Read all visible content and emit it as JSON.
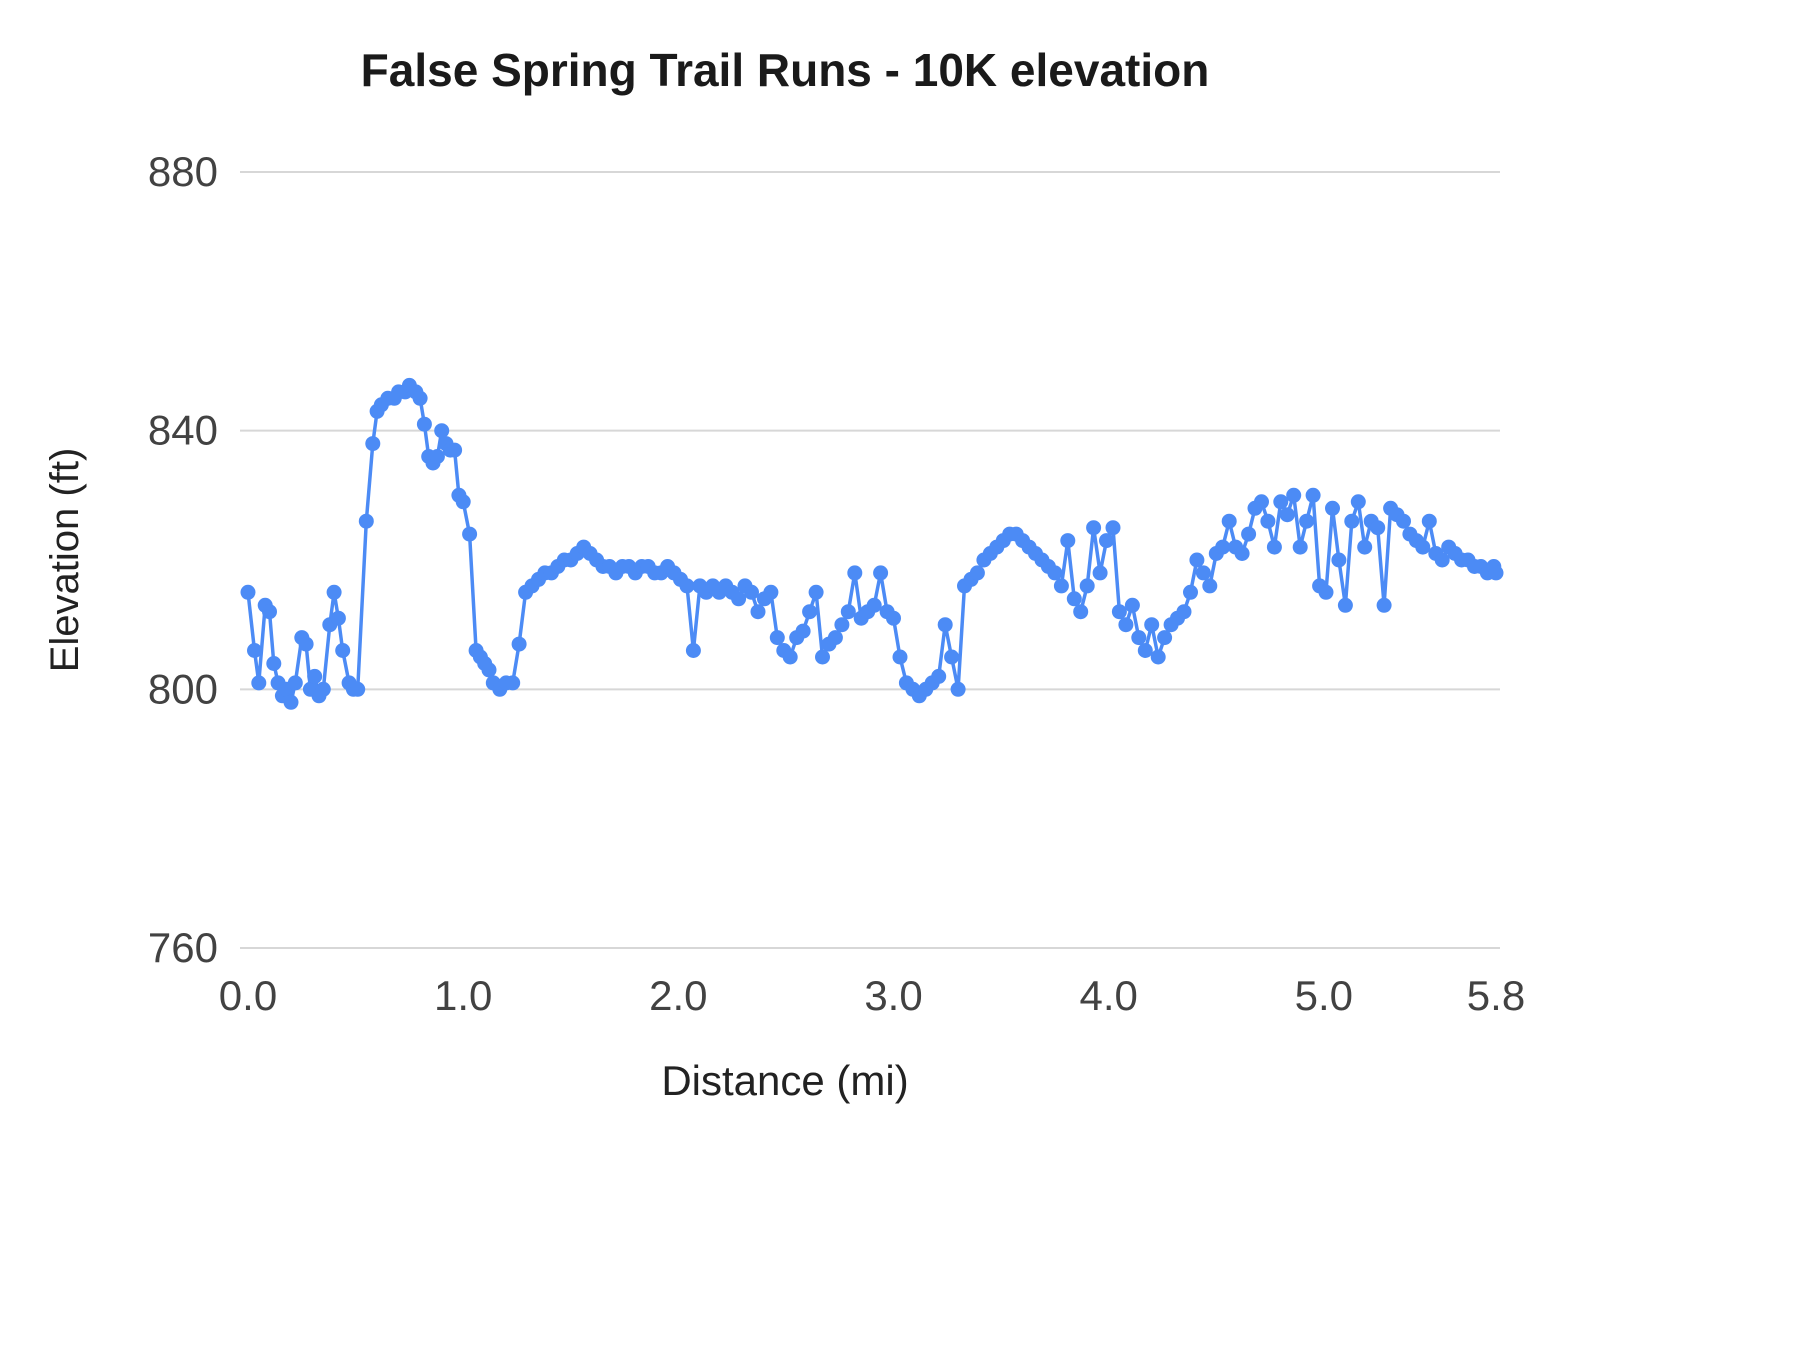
{
  "chart_data": {
    "type": "line",
    "title": "False Spring Trail Runs - 10K elevation",
    "xlabel": "Distance (mi)",
    "ylabel": "Elevation (ft)",
    "xlim": [
      0.0,
      5.8
    ],
    "ylim": [
      760,
      880
    ],
    "x_ticks": [
      0.0,
      1.0,
      2.0,
      3.0,
      4.0,
      5.0,
      5.8
    ],
    "x_tick_labels": [
      "0.0",
      "1.0",
      "2.0",
      "3.0",
      "4.0",
      "5.0",
      "5.8"
    ],
    "y_ticks": [
      760,
      800,
      840,
      880
    ],
    "y_tick_labels": [
      "760",
      "800",
      "840",
      "880"
    ],
    "grid": "horizontal",
    "legend": "none",
    "marker": "circle",
    "colors": {
      "line": "#4c8bf5",
      "marker": "#4c8bf5",
      "grid": "#d7d7d7",
      "tick_text": "#424242",
      "title_text": "#1a1a1a",
      "axis_label_text": "#222222",
      "background": "#ffffff"
    },
    "points": [
      [
        0.0,
        815
      ],
      [
        0.03,
        806
      ],
      [
        0.05,
        801
      ],
      [
        0.08,
        813
      ],
      [
        0.1,
        812
      ],
      [
        0.12,
        804
      ],
      [
        0.14,
        801
      ],
      [
        0.16,
        799
      ],
      [
        0.18,
        800
      ],
      [
        0.2,
        798
      ],
      [
        0.22,
        801
      ],
      [
        0.25,
        808
      ],
      [
        0.27,
        807
      ],
      [
        0.29,
        800
      ],
      [
        0.31,
        802
      ],
      [
        0.33,
        799
      ],
      [
        0.35,
        800
      ],
      [
        0.38,
        810
      ],
      [
        0.4,
        815
      ],
      [
        0.42,
        811
      ],
      [
        0.44,
        806
      ],
      [
        0.47,
        801
      ],
      [
        0.49,
        800
      ],
      [
        0.51,
        800
      ],
      [
        0.55,
        826
      ],
      [
        0.58,
        838
      ],
      [
        0.6,
        843
      ],
      [
        0.62,
        844
      ],
      [
        0.65,
        845
      ],
      [
        0.68,
        845
      ],
      [
        0.7,
        846
      ],
      [
        0.73,
        846
      ],
      [
        0.75,
        847
      ],
      [
        0.78,
        846
      ],
      [
        0.8,
        845
      ],
      [
        0.82,
        841
      ],
      [
        0.84,
        836
      ],
      [
        0.86,
        835
      ],
      [
        0.88,
        836
      ],
      [
        0.9,
        840
      ],
      [
        0.92,
        838
      ],
      [
        0.94,
        837
      ],
      [
        0.96,
        837
      ],
      [
        0.98,
        830
      ],
      [
        1.0,
        829
      ],
      [
        1.03,
        824
      ],
      [
        1.06,
        806
      ],
      [
        1.08,
        805
      ],
      [
        1.1,
        804
      ],
      [
        1.12,
        803
      ],
      [
        1.14,
        801
      ],
      [
        1.17,
        800
      ],
      [
        1.2,
        801
      ],
      [
        1.23,
        801
      ],
      [
        1.26,
        807
      ],
      [
        1.29,
        815
      ],
      [
        1.32,
        816
      ],
      [
        1.35,
        817
      ],
      [
        1.38,
        818
      ],
      [
        1.41,
        818
      ],
      [
        1.44,
        819
      ],
      [
        1.47,
        820
      ],
      [
        1.5,
        820
      ],
      [
        1.53,
        821
      ],
      [
        1.56,
        822
      ],
      [
        1.59,
        821
      ],
      [
        1.62,
        820
      ],
      [
        1.65,
        819
      ],
      [
        1.68,
        819
      ],
      [
        1.71,
        818
      ],
      [
        1.74,
        819
      ],
      [
        1.77,
        819
      ],
      [
        1.8,
        818
      ],
      [
        1.83,
        819
      ],
      [
        1.86,
        819
      ],
      [
        1.89,
        818
      ],
      [
        1.92,
        818
      ],
      [
        1.95,
        819
      ],
      [
        1.98,
        818
      ],
      [
        2.01,
        817
      ],
      [
        2.04,
        816
      ],
      [
        2.07,
        806
      ],
      [
        2.1,
        816
      ],
      [
        2.13,
        815
      ],
      [
        2.16,
        816
      ],
      [
        2.19,
        815
      ],
      [
        2.22,
        816
      ],
      [
        2.25,
        815
      ],
      [
        2.28,
        814
      ],
      [
        2.31,
        816
      ],
      [
        2.34,
        815
      ],
      [
        2.37,
        812
      ],
      [
        2.4,
        814
      ],
      [
        2.43,
        815
      ],
      [
        2.46,
        808
      ],
      [
        2.49,
        806
      ],
      [
        2.52,
        805
      ],
      [
        2.55,
        808
      ],
      [
        2.58,
        809
      ],
      [
        2.61,
        812
      ],
      [
        2.64,
        815
      ],
      [
        2.67,
        805
      ],
      [
        2.7,
        807
      ],
      [
        2.73,
        808
      ],
      [
        2.76,
        810
      ],
      [
        2.79,
        812
      ],
      [
        2.82,
        818
      ],
      [
        2.85,
        811
      ],
      [
        2.88,
        812
      ],
      [
        2.91,
        813
      ],
      [
        2.94,
        818
      ],
      [
        2.97,
        812
      ],
      [
        3.0,
        811
      ],
      [
        3.03,
        805
      ],
      [
        3.06,
        801
      ],
      [
        3.09,
        800
      ],
      [
        3.12,
        799
      ],
      [
        3.15,
        800
      ],
      [
        3.18,
        801
      ],
      [
        3.21,
        802
      ],
      [
        3.24,
        810
      ],
      [
        3.27,
        805
      ],
      [
        3.3,
        800
      ],
      [
        3.33,
        816
      ],
      [
        3.36,
        817
      ],
      [
        3.39,
        818
      ],
      [
        3.42,
        820
      ],
      [
        3.45,
        821
      ],
      [
        3.48,
        822
      ],
      [
        3.51,
        823
      ],
      [
        3.54,
        824
      ],
      [
        3.57,
        824
      ],
      [
        3.6,
        823
      ],
      [
        3.63,
        822
      ],
      [
        3.66,
        821
      ],
      [
        3.69,
        820
      ],
      [
        3.72,
        819
      ],
      [
        3.75,
        818
      ],
      [
        3.78,
        816
      ],
      [
        3.81,
        823
      ],
      [
        3.84,
        814
      ],
      [
        3.87,
        812
      ],
      [
        3.9,
        816
      ],
      [
        3.93,
        825
      ],
      [
        3.96,
        818
      ],
      [
        3.99,
        823
      ],
      [
        4.02,
        825
      ],
      [
        4.05,
        812
      ],
      [
        4.08,
        810
      ],
      [
        4.11,
        813
      ],
      [
        4.14,
        808
      ],
      [
        4.17,
        806
      ],
      [
        4.2,
        810
      ],
      [
        4.23,
        805
      ],
      [
        4.26,
        808
      ],
      [
        4.29,
        810
      ],
      [
        4.32,
        811
      ],
      [
        4.35,
        812
      ],
      [
        4.38,
        815
      ],
      [
        4.41,
        820
      ],
      [
        4.44,
        818
      ],
      [
        4.47,
        816
      ],
      [
        4.5,
        821
      ],
      [
        4.53,
        822
      ],
      [
        4.56,
        826
      ],
      [
        4.59,
        822
      ],
      [
        4.62,
        821
      ],
      [
        4.65,
        824
      ],
      [
        4.68,
        828
      ],
      [
        4.71,
        829
      ],
      [
        4.74,
        826
      ],
      [
        4.77,
        822
      ],
      [
        4.8,
        829
      ],
      [
        4.83,
        827
      ],
      [
        4.86,
        830
      ],
      [
        4.89,
        822
      ],
      [
        4.92,
        826
      ],
      [
        4.95,
        830
      ],
      [
        4.98,
        816
      ],
      [
        5.01,
        815
      ],
      [
        5.04,
        828
      ],
      [
        5.07,
        820
      ],
      [
        5.1,
        813
      ],
      [
        5.13,
        826
      ],
      [
        5.16,
        829
      ],
      [
        5.19,
        822
      ],
      [
        5.22,
        826
      ],
      [
        5.25,
        825
      ],
      [
        5.28,
        813
      ],
      [
        5.31,
        828
      ],
      [
        5.34,
        827
      ],
      [
        5.37,
        826
      ],
      [
        5.4,
        824
      ],
      [
        5.43,
        823
      ],
      [
        5.46,
        822
      ],
      [
        5.49,
        826
      ],
      [
        5.52,
        821
      ],
      [
        5.55,
        820
      ],
      [
        5.58,
        822
      ],
      [
        5.61,
        821
      ],
      [
        5.64,
        820
      ],
      [
        5.67,
        820
      ],
      [
        5.7,
        819
      ],
      [
        5.73,
        819
      ],
      [
        5.76,
        818
      ],
      [
        5.79,
        819
      ],
      [
        5.8,
        818
      ]
    ]
  }
}
